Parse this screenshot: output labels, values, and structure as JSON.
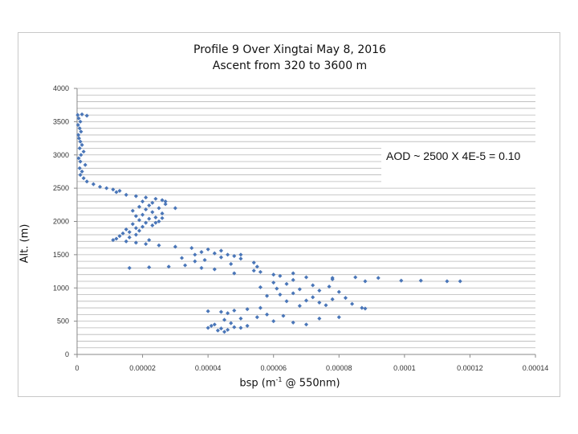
{
  "chart_data": {
    "type": "scatter",
    "title_line1": "Profile 9 Over Xingtai May 8, 2016",
    "title_line2": "Ascent from 320 to 3600 m",
    "ylabel": "Alt. (m)",
    "xlabel_pre": "bsp (m",
    "xlabel_sup": "-1",
    "xlabel_post": " @ 550nm)",
    "annotation": "AOD ~ 2500 X 4E-5 = 0.10",
    "xlim": [
      0,
      0.00014
    ],
    "ylim": [
      0,
      4000
    ],
    "x_ticks": [
      0,
      2e-05,
      4e-05,
      6e-05,
      8e-05,
      0.0001,
      0.00012,
      0.00014
    ],
    "x_tick_labels": [
      "0",
      "0.00002",
      "0.00004",
      "0.00006",
      "0.00008",
      "0.0001",
      "0.00012",
      "0.00014"
    ],
    "y_ticks": [
      0,
      500,
      1000,
      1500,
      2000,
      2500,
      3000,
      3500,
      4000
    ],
    "y_tick_labels": [
      "0",
      "500",
      "1000",
      "1500",
      "2000",
      "2500",
      "3000",
      "3500",
      "4000"
    ],
    "minor_gridlines_y_step": 100,
    "grid": true,
    "marker_color": "#4a76b8",
    "points": [
      [
        2e-07,
        3600
      ],
      [
        1.5e-06,
        3610
      ],
      [
        3e-06,
        3590
      ],
      [
        5e-07,
        3550
      ],
      [
        1e-06,
        3500
      ],
      [
        3e-07,
        3450
      ],
      [
        8e-07,
        3400
      ],
      [
        1.2e-06,
        3350
      ],
      [
        4e-07,
        3300
      ],
      [
        6e-07,
        3250
      ],
      [
        1e-06,
        3200
      ],
      [
        1.5e-06,
        3150
      ],
      [
        8e-07,
        3100
      ],
      [
        2e-06,
        3050
      ],
      [
        1.2e-06,
        3000
      ],
      [
        5e-07,
        2950
      ],
      [
        1e-06,
        2900
      ],
      [
        2.5e-06,
        2850
      ],
      [
        8e-07,
        2800
      ],
      [
        1.5e-06,
        2750
      ],
      [
        1e-06,
        2700
      ],
      [
        2e-06,
        2650
      ],
      [
        3e-06,
        2600
      ],
      [
        5e-06,
        2560
      ],
      [
        7e-06,
        2520
      ],
      [
        9e-06,
        2500
      ],
      [
        1.1e-05,
        2480
      ],
      [
        1.3e-05,
        2460
      ],
      [
        1.2e-05,
        2440
      ],
      [
        1.5e-05,
        2400
      ],
      [
        1.8e-05,
        2380
      ],
      [
        2.1e-05,
        2360
      ],
      [
        2.4e-05,
        2340
      ],
      [
        2.6e-05,
        2320
      ],
      [
        2e-05,
        2300
      ],
      [
        2.3e-05,
        2280
      ],
      [
        2.7e-05,
        2260
      ],
      [
        2.2e-05,
        2240
      ],
      [
        1.9e-05,
        2220
      ],
      [
        2.5e-05,
        2200
      ],
      [
        2.1e-05,
        2180
      ],
      [
        1.7e-05,
        2160
      ],
      [
        2.3e-05,
        2140
      ],
      [
        2.6e-05,
        2120
      ],
      [
        2e-05,
        2100
      ],
      [
        1.8e-05,
        2080
      ],
      [
        2.4e-05,
        2060
      ],
      [
        2.2e-05,
        2040
      ],
      [
        1.9e-05,
        2020
      ],
      [
        2.5e-05,
        2000
      ],
      [
        2.1e-05,
        1980
      ],
      [
        1.7e-05,
        1960
      ],
      [
        2.3e-05,
        1940
      ],
      [
        2e-05,
        1920
      ],
      [
        1.8e-05,
        1900
      ],
      [
        1.5e-05,
        1880
      ],
      [
        1.9e-05,
        1860
      ],
      [
        1.6e-05,
        1840
      ],
      [
        1.4e-05,
        1820
      ],
      [
        1.8e-05,
        1800
      ],
      [
        1.3e-05,
        1780
      ],
      [
        1.6e-05,
        1760
      ],
      [
        1.2e-05,
        1740
      ],
      [
        1.1e-05,
        1720
      ],
      [
        1.5e-05,
        1700
      ],
      [
        1.8e-05,
        1680
      ],
      [
        2.1e-05,
        1660
      ],
      [
        2.5e-05,
        1640
      ],
      [
        3e-05,
        1620
      ],
      [
        3.5e-05,
        1600
      ],
      [
        4e-05,
        1580
      ],
      [
        4.4e-05,
        1560
      ],
      [
        3.8e-05,
        1540
      ],
      [
        4.2e-05,
        1520
      ],
      [
        4.6e-05,
        1500
      ],
      [
        4.8e-05,
        1480
      ],
      [
        4.4e-05,
        1460
      ],
      [
        5e-05,
        1440
      ],
      [
        3.9e-05,
        1420
      ],
      [
        3.6e-05,
        1400
      ],
      [
        5.4e-05,
        1380
      ],
      [
        4.7e-05,
        1360
      ],
      [
        3.3e-05,
        1340
      ],
      [
        2.8e-05,
        1320
      ],
      [
        1.6e-05,
        1300
      ],
      [
        2.2e-05,
        1310
      ],
      [
        3.8e-05,
        1300
      ],
      [
        4.2e-05,
        1280
      ],
      [
        5.4e-05,
        1260
      ],
      [
        5.6e-05,
        1240
      ],
      [
        4.8e-05,
        1220
      ],
      [
        6e-05,
        1200
      ],
      [
        6.2e-05,
        1180
      ],
      [
        7e-05,
        1160
      ],
      [
        7.8e-05,
        1150
      ],
      [
        8.5e-05,
        1160
      ],
      [
        9.2e-05,
        1150
      ],
      [
        7.8e-05,
        1130
      ],
      [
        6.6e-05,
        1120
      ],
      [
        9.9e-05,
        1110
      ],
      [
        0.000105,
        1110
      ],
      [
        0.000113,
        1100
      ],
      [
        0.000117,
        1100
      ],
      [
        8.8e-05,
        1100
      ],
      [
        6e-05,
        1080
      ],
      [
        6.4e-05,
        1060
      ],
      [
        7.2e-05,
        1040
      ],
      [
        7.7e-05,
        1020
      ],
      [
        5.6e-05,
        1010
      ],
      [
        6.1e-05,
        990
      ],
      [
        6.8e-05,
        980
      ],
      [
        7.4e-05,
        960
      ],
      [
        8e-05,
        940
      ],
      [
        6.6e-05,
        920
      ],
      [
        6.2e-05,
        900
      ],
      [
        5.8e-05,
        880
      ],
      [
        7.2e-05,
        860
      ],
      [
        8.2e-05,
        850
      ],
      [
        7.8e-05,
        830
      ],
      [
        7e-05,
        810
      ],
      [
        6.4e-05,
        800
      ],
      [
        7.4e-05,
        780
      ],
      [
        8.4e-05,
        760
      ],
      [
        7.6e-05,
        740
      ],
      [
        6.8e-05,
        730
      ],
      [
        8.7e-05,
        700
      ],
      [
        8.8e-05,
        690
      ],
      [
        5.6e-05,
        700
      ],
      [
        5.2e-05,
        680
      ],
      [
        4.8e-05,
        660
      ],
      [
        4.4e-05,
        640
      ],
      [
        4e-05,
        650
      ],
      [
        4.6e-05,
        620
      ],
      [
        5.8e-05,
        600
      ],
      [
        6.3e-05,
        580
      ],
      [
        5.5e-05,
        560
      ],
      [
        5e-05,
        540
      ],
      [
        4.5e-05,
        520
      ],
      [
        6e-05,
        500
      ],
      [
        6.6e-05,
        480
      ],
      [
        4.7e-05,
        470
      ],
      [
        4.2e-05,
        450
      ],
      [
        5.2e-05,
        430
      ],
      [
        4.8e-05,
        410
      ],
      [
        4.4e-05,
        390
      ],
      [
        4.6e-05,
        370
      ],
      [
        5e-05,
        400
      ],
      [
        4.3e-05,
        360
      ],
      [
        4.5e-05,
        340
      ],
      [
        4e-05,
        400
      ],
      [
        4.1e-05,
        430
      ],
      [
        7e-05,
        450
      ],
      [
        7.4e-05,
        540
      ],
      [
        8e-05,
        560
      ],
      [
        3.6e-05,
        1500
      ],
      [
        3.2e-05,
        1450
      ],
      [
        5e-05,
        1500
      ],
      [
        5.5e-05,
        1320
      ],
      [
        6.6e-05,
        1220
      ],
      [
        3e-05,
        2200
      ],
      [
        2.7e-05,
        2300
      ],
      [
        2.6e-05,
        2050
      ],
      [
        2.4e-05,
        1980
      ],
      [
        2.2e-05,
        1720
      ]
    ]
  }
}
